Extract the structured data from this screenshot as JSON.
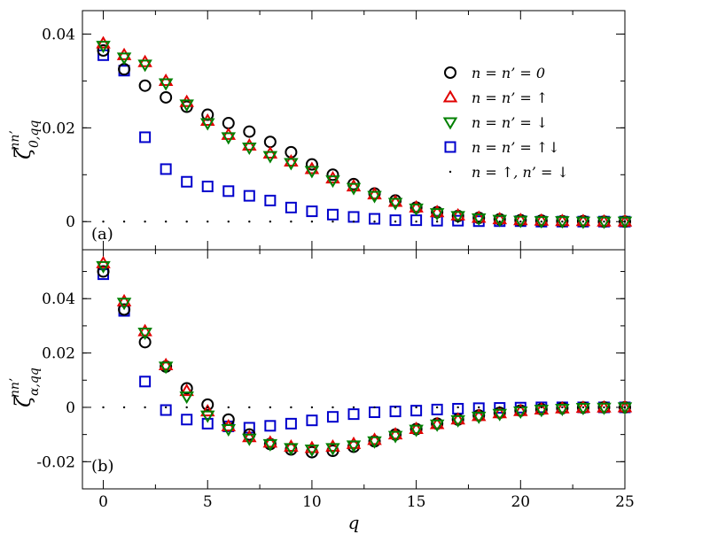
{
  "figure": {
    "x_axis_label": "q",
    "x_ticks": [
      0,
      5,
      10,
      15,
      20,
      25
    ],
    "legend": [
      {
        "key": "n0",
        "label": "n = n’ = 0",
        "marker": "circle",
        "color": "#000000"
      },
      {
        "key": "nup",
        "label": "n = n’ = ↑",
        "marker": "triangle-up",
        "color": "#e00000"
      },
      {
        "key": "ndown",
        "label": "n = n’ = ↓",
        "marker": "triangle-down",
        "color": "#008000"
      },
      {
        "key": "nupdown",
        "label": "n = n’ = ↑↓",
        "marker": "square",
        "color": "#0000cc"
      },
      {
        "key": "nupndown",
        "label": "n = ↑, n’ = ↓",
        "marker": "dot",
        "color": "#000000"
      }
    ]
  },
  "chart_data": [
    {
      "type": "scatter",
      "panel_label": "(a)",
      "ylabel": "ζ^{nn’}_{0,qq}",
      "ylabel_main": "ζ",
      "ylabel_sup": "nn’",
      "ylabel_sub": "0,qq",
      "xlim": [
        -1,
        25
      ],
      "ylim": [
        -0.006,
        0.045
      ],
      "y_ticks": [
        0,
        0.02,
        0.04
      ],
      "y_tick_labels": [
        "0",
        "0.02",
        "0.04"
      ],
      "x": [
        0,
        1,
        2,
        3,
        4,
        5,
        6,
        7,
        8,
        9,
        10,
        11,
        12,
        13,
        14,
        15,
        16,
        17,
        18,
        19,
        20,
        21,
        22,
        23,
        24,
        25
      ],
      "series": [
        {
          "name": "n = n’ = 0",
          "marker": "circle",
          "color": "#000000",
          "values": [
            0.0365,
            0.0325,
            0.029,
            0.0265,
            0.0245,
            0.0228,
            0.021,
            0.0192,
            0.017,
            0.0148,
            0.0122,
            0.01,
            0.008,
            0.006,
            0.0045,
            0.003,
            0.002,
            0.0012,
            0.0008,
            0.0005,
            0.0003,
            0.0002,
            0.0001,
            0.0001,
            0.0,
            0.0
          ]
        },
        {
          "name": "n = n’ = ↑",
          "marker": "triangle-up",
          "color": "#e00000",
          "values": [
            0.038,
            0.0355,
            0.034,
            0.03,
            0.0255,
            0.0215,
            0.0185,
            0.0162,
            0.0145,
            0.0128,
            0.0112,
            0.0092,
            0.0075,
            0.0058,
            0.0042,
            0.003,
            0.002,
            0.0013,
            0.0008,
            0.0005,
            0.0003,
            0.0002,
            0.0001,
            0.0001,
            0.0,
            0.0
          ]
        },
        {
          "name": "n = n’ = ↓",
          "marker": "triangle-down",
          "color": "#008000",
          "values": [
            0.0375,
            0.035,
            0.0335,
            0.0295,
            0.025,
            0.021,
            0.018,
            0.0158,
            0.014,
            0.0125,
            0.0108,
            0.0088,
            0.0072,
            0.0055,
            0.004,
            0.0028,
            0.0018,
            0.0012,
            0.0007,
            0.0004,
            0.0002,
            0.0001,
            0.0001,
            0.0,
            0.0,
            0.0
          ]
        },
        {
          "name": "n = n’ = ↑↓",
          "marker": "square",
          "color": "#0000cc",
          "values": [
            0.0355,
            0.0322,
            0.018,
            0.0112,
            0.0085,
            0.0075,
            0.0065,
            0.0055,
            0.0045,
            0.003,
            0.0022,
            0.0015,
            0.001,
            0.0006,
            0.0003,
            0.0003,
            0.0002,
            0.0002,
            0.0001,
            0.0001,
            0.0001,
            0.0,
            0.0,
            0.0,
            0.0,
            0.0
          ]
        },
        {
          "name": "n = ↑, n’ = ↓",
          "marker": "dot",
          "color": "#000000",
          "values": [
            0,
            0,
            0,
            0,
            0,
            0,
            0,
            0,
            0,
            0,
            0,
            0,
            0,
            0,
            0,
            0,
            0,
            0,
            0,
            0,
            0,
            0,
            0,
            0,
            0,
            0
          ]
        }
      ]
    },
    {
      "type": "scatter",
      "panel_label": "(b)",
      "ylabel": "ζ^{nn’}_{α,qq}",
      "ylabel_main": "ζ",
      "ylabel_sup": "nn’",
      "ylabel_sub": "α,qq",
      "xlim": [
        -1,
        25
      ],
      "ylim": [
        -0.03,
        0.058
      ],
      "y_ticks": [
        -0.02,
        0,
        0.02,
        0.04
      ],
      "y_tick_labels": [
        "-0.02",
        "0",
        "0.02",
        "0.04"
      ],
      "x": [
        0,
        1,
        2,
        3,
        4,
        5,
        6,
        7,
        8,
        9,
        10,
        11,
        12,
        13,
        14,
        15,
        16,
        17,
        18,
        19,
        20,
        21,
        22,
        23,
        24,
        25
      ],
      "series": [
        {
          "name": "n = n’ = 0",
          "marker": "circle",
          "color": "#000000",
          "values": [
            0.05,
            0.036,
            0.024,
            0.015,
            0.007,
            0.001,
            -0.0045,
            -0.01,
            -0.0135,
            -0.0155,
            -0.0165,
            -0.016,
            -0.0145,
            -0.0125,
            -0.01,
            -0.008,
            -0.006,
            -0.0045,
            -0.003,
            -0.002,
            -0.0012,
            -0.0007,
            -0.0003,
            -0.0001,
            0.0,
            0.0
          ]
        },
        {
          "name": "n = n’ = ↑",
          "marker": "triangle-up",
          "color": "#e00000",
          "values": [
            0.053,
            0.039,
            0.028,
            0.0155,
            0.006,
            -0.0015,
            -0.007,
            -0.011,
            -0.013,
            -0.0145,
            -0.015,
            -0.0145,
            -0.0135,
            -0.012,
            -0.01,
            -0.008,
            -0.0062,
            -0.0045,
            -0.0032,
            -0.0022,
            -0.0014,
            -0.0008,
            -0.0004,
            -0.0002,
            -0.0001,
            0.0
          ]
        },
        {
          "name": "n = n’ = ↓",
          "marker": "triangle-down",
          "color": "#008000",
          "values": [
            0.052,
            0.0385,
            0.0275,
            0.015,
            0.004,
            -0.003,
            -0.008,
            -0.0115,
            -0.0135,
            -0.015,
            -0.0155,
            -0.015,
            -0.014,
            -0.0125,
            -0.0105,
            -0.0082,
            -0.0063,
            -0.0047,
            -0.0034,
            -0.0024,
            -0.0015,
            -0.0009,
            -0.0005,
            -0.0002,
            -0.0001,
            0.0
          ]
        },
        {
          "name": "n = n’ = ↑↓",
          "marker": "square",
          "color": "#0000cc",
          "values": [
            0.049,
            0.0355,
            0.0095,
            -0.001,
            -0.0045,
            -0.006,
            -0.007,
            -0.0075,
            -0.0068,
            -0.006,
            -0.0048,
            -0.0035,
            -0.0025,
            -0.0018,
            -0.0015,
            -0.0012,
            -0.0008,
            -0.0005,
            -0.0003,
            -0.0002,
            -0.0001,
            0.0,
            0.0,
            0.0,
            0.0,
            0.0
          ]
        },
        {
          "name": "n = ↑, n’ = ↓",
          "marker": "dot",
          "color": "#000000",
          "values": [
            0,
            0,
            0,
            0,
            0,
            0,
            0,
            0,
            0,
            0,
            0,
            0,
            0,
            0,
            0,
            0,
            0,
            0,
            0,
            0,
            0,
            0,
            0,
            0,
            0,
            0
          ]
        }
      ]
    }
  ]
}
